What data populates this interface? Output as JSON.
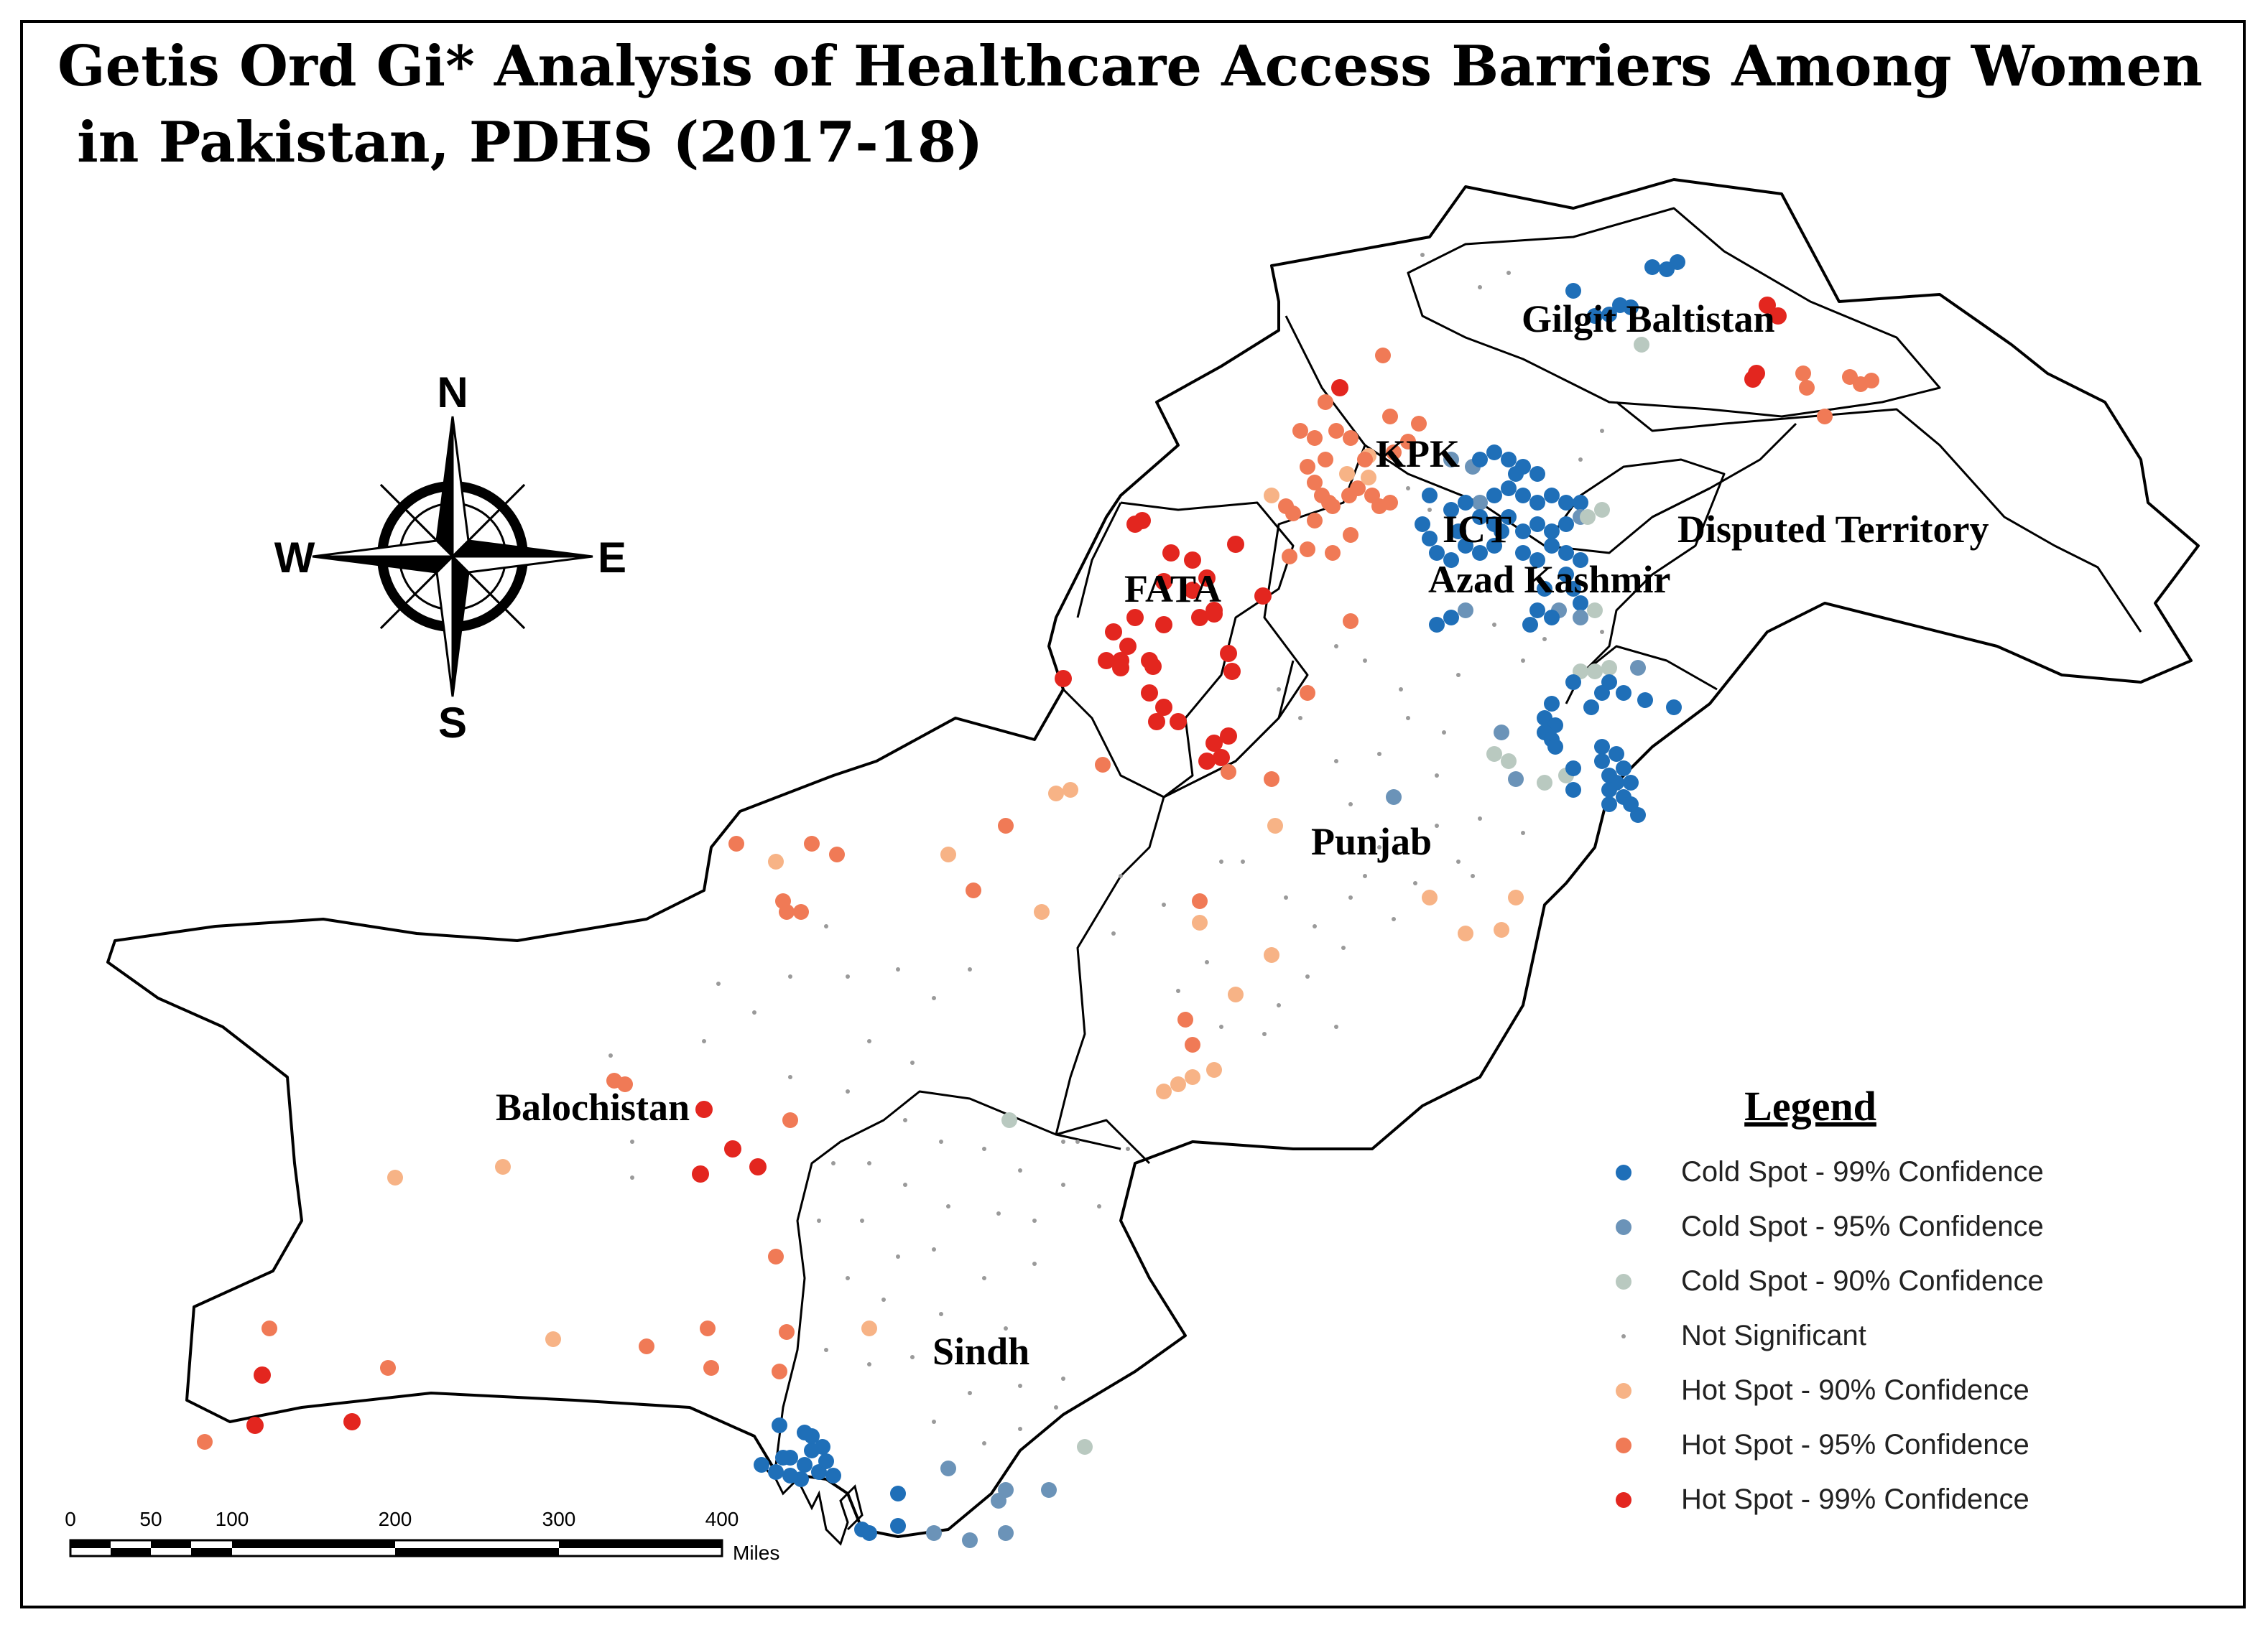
{
  "title": {
    "line1": "Getis Ord Gi* Analysis of Healthcare Access Barriers Among Women",
    "line2": " in Pakistan, PDHS (2017-18)"
  },
  "regions": {
    "gilgit": "Gilgit Baltistan",
    "kpk": "KPK",
    "ict": "ICT",
    "azad": "Azad Kashmir",
    "disputed": "Disputed Territory",
    "fata": "FATA",
    "punjab": "Punjab",
    "balochistan": "Balochistan",
    "sindh": "Sindh"
  },
  "compass": {
    "n": "N",
    "e": "E",
    "s": "S",
    "w": "W"
  },
  "scale_bar": {
    "ticks": [
      "0",
      "50",
      "100",
      "200",
      "300",
      "400"
    ],
    "unit": "Miles"
  },
  "legend": {
    "title": "Legend",
    "items": [
      {
        "label": "Cold Spot - 99% Confidence",
        "color": "#1f6fb8"
      },
      {
        "label": "Cold Spot - 95% Confidence",
        "color": "#6b93b8"
      },
      {
        "label": "Cold Spot - 90% Confidence",
        "color": "#b9c9c0"
      },
      {
        "label": "Not Significant",
        "color": "#9a9a9a"
      },
      {
        "label": "Hot Spot - 90% Confidence",
        "color": "#f7b386"
      },
      {
        "label": "Hot Spot - 95% Confidence",
        "color": "#f07a56"
      },
      {
        "label": "Hot Spot - 99% Confidence",
        "color": "#e3261f"
      }
    ]
  }
}
